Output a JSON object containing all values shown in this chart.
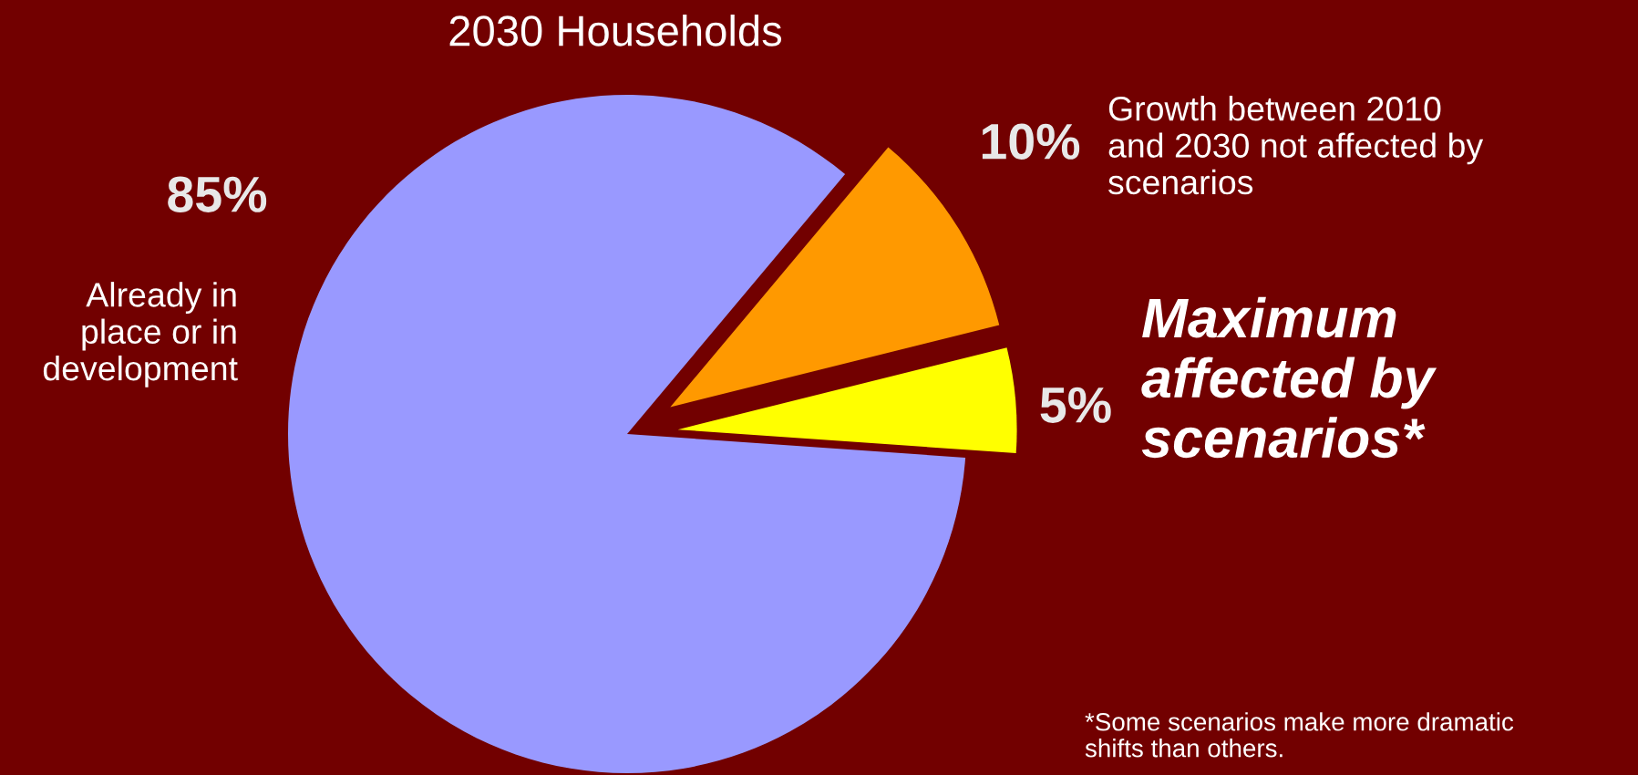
{
  "chart_data": {
    "type": "pie",
    "title": "2030 Households",
    "categories": [
      "Growth between 2010\nand 2030 not affected by\nscenarios",
      "Maximum\naffected by\nscenarios*",
      "Already in\nplace or in\ndevelopment"
    ],
    "values": [
      10,
      5,
      85
    ],
    "colors": [
      "#ff9900",
      "#ffff00",
      "#9999ff"
    ],
    "value_labels": [
      "10%",
      "5%",
      "85%"
    ],
    "annotations": [
      "*Some scenarios make more dramatic\nshifts than others."
    ]
  }
}
